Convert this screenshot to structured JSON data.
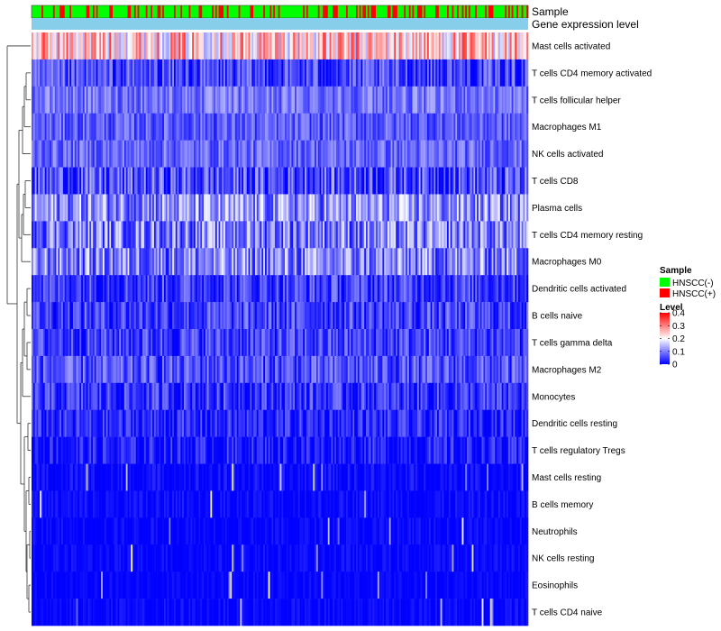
{
  "chart_data": {
    "type": "heatmap",
    "title": "",
    "xlabel": "",
    "ylabel": "",
    "n_samples": 300,
    "annotation_tracks": [
      "Sample",
      "Gene expression level"
    ],
    "rows": [
      {
        "label": "Mast cells activated",
        "mean": 0.24,
        "spread": 0.12
      },
      {
        "label": "T cells CD4 memory activated",
        "mean": 0.05,
        "spread": 0.07
      },
      {
        "label": "T cells follicular helper",
        "mean": 0.09,
        "spread": 0.05
      },
      {
        "label": "Macrophages M1",
        "mean": 0.07,
        "spread": 0.05
      },
      {
        "label": "NK cells activated",
        "mean": 0.08,
        "spread": 0.05
      },
      {
        "label": "T cells CD8",
        "mean": 0.06,
        "spread": 0.08
      },
      {
        "label": "Plasma cells",
        "mean": 0.11,
        "spread": 0.09
      },
      {
        "label": "T cells CD4 memory resting",
        "mean": 0.1,
        "spread": 0.09
      },
      {
        "label": "Macrophages M0",
        "mean": 0.1,
        "spread": 0.09
      },
      {
        "label": "Dendritic cells activated",
        "mean": 0.05,
        "spread": 0.06
      },
      {
        "label": "B cells naive",
        "mean": 0.05,
        "spread": 0.06
      },
      {
        "label": "T cells gamma delta",
        "mean": 0.05,
        "spread": 0.06
      },
      {
        "label": "Macrophages M2",
        "mean": 0.06,
        "spread": 0.06
      },
      {
        "label": "Monocytes",
        "mean": 0.04,
        "spread": 0.06
      },
      {
        "label": "Dendritic cells resting",
        "mean": 0.03,
        "spread": 0.05
      },
      {
        "label": "T cells regulatory  Tregs",
        "mean": 0.02,
        "spread": 0.05
      },
      {
        "label": "Mast cells resting",
        "mean": 0.005,
        "spread": 0.03
      },
      {
        "label": "B cells memory",
        "mean": 0.005,
        "spread": 0.025
      },
      {
        "label": "Neutrophils",
        "mean": 0.004,
        "spread": 0.02
      },
      {
        "label": "NK cells resting",
        "mean": 0.004,
        "spread": 0.02
      },
      {
        "label": "Eosinophils",
        "mean": 0.003,
        "spread": 0.015
      },
      {
        "label": "T cells CD4 naive",
        "mean": 0.003,
        "spread": 0.02
      }
    ],
    "legend": {
      "sample": {
        "title": "Sample",
        "items": [
          {
            "label": "HNSCC(-)",
            "color": "#00ff00"
          },
          {
            "label": "HNSCC(+)",
            "color": "#ff0000"
          }
        ]
      },
      "level": {
        "title": "Level",
        "min": 0,
        "max": 0.4,
        "ticks": [
          0.4,
          0.3,
          0.2,
          0.1,
          0
        ],
        "tick_labels": [
          "0.4",
          "0.3",
          "0.2",
          "0.1",
          "0"
        ],
        "colors": [
          "#0000ff",
          "#ffffff",
          "#ff0000"
        ]
      }
    },
    "gene_expression_color": "#87ceeb"
  }
}
